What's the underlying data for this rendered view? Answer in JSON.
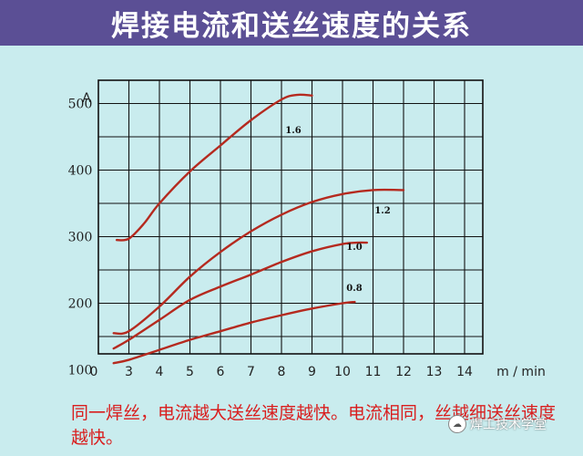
{
  "header": {
    "title": "焊接电流和送丝速度的关系"
  },
  "caption": "同一焊丝，电流越大送丝速度越快。电流相同，丝越细送丝速度越快。",
  "watermark": {
    "text": "焊工技术学堂",
    "icon": "wechat-icon"
  },
  "colors": {
    "background": "#c9ecee",
    "title_bar": "#5b4f95",
    "curve": "#b52a1f",
    "caption": "#d91e1e",
    "grid": "#111111"
  },
  "chart_data": {
    "type": "line",
    "title": "焊接电流和送丝速度的关系",
    "xlabel": "m / min",
    "ylabel": "A",
    "xlim": [
      0,
      15
    ],
    "ylim": [
      80,
      600
    ],
    "x_ticks": [
      0,
      3,
      4,
      5,
      6,
      7,
      8,
      9,
      10,
      11,
      12,
      13,
      14
    ],
    "y_ticks": [
      100,
      200,
      300,
      400,
      500
    ],
    "grid": true,
    "series": [
      {
        "name": "1.6",
        "x": [
          2.6,
          3.0,
          3.5,
          4.0,
          5.0,
          6.0,
          7.0,
          8.0,
          8.5,
          9.0
        ],
        "y": [
          295,
          297,
          320,
          350,
          398,
          437,
          475,
          506,
          513,
          512
        ]
      },
      {
        "name": "1.2",
        "x": [
          2.5,
          3.0,
          4.0,
          5.0,
          6.0,
          7.0,
          8.0,
          9.0,
          10.0,
          11.0,
          12.0
        ],
        "y": [
          155,
          158,
          195,
          240,
          277,
          308,
          333,
          352,
          364,
          370,
          370
        ]
      },
      {
        "name": "1.0",
        "x": [
          2.5,
          3.0,
          4.0,
          5.0,
          6.0,
          7.0,
          8.0,
          9.0,
          10.0,
          10.5,
          10.8
        ],
        "y": [
          132,
          145,
          175,
          205,
          225,
          243,
          262,
          278,
          289,
          291,
          291
        ]
      },
      {
        "name": "0.8",
        "x": [
          2.5,
          3.0,
          4.0,
          5.0,
          6.0,
          7.0,
          8.0,
          9.0,
          10.0,
          10.4
        ],
        "y": [
          110,
          115,
          130,
          145,
          158,
          171,
          182,
          192,
          200,
          202
        ]
      }
    ]
  }
}
